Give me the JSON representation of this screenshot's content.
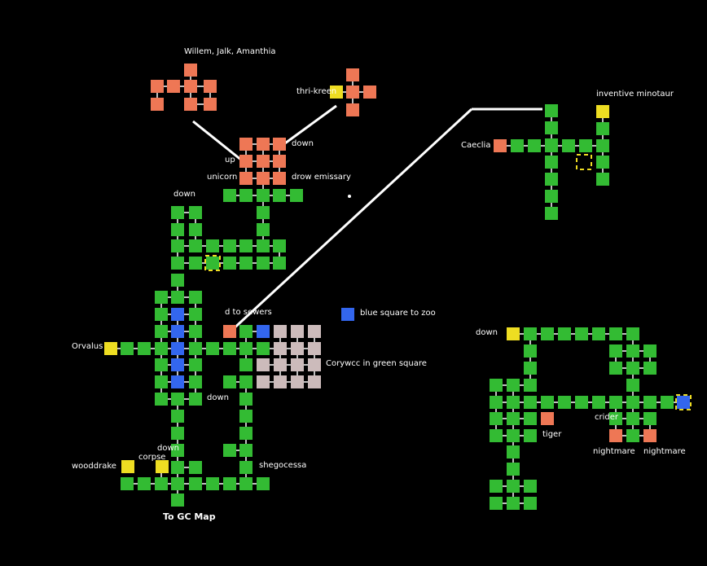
{
  "labels": {
    "party": "Willem, Jalk, Amanthia",
    "thri_kreen": "thri-kreen",
    "down_top": "down",
    "up": "up",
    "unicorn": "unicorn",
    "drow_emissary": "drow emissary",
    "down_left": "down",
    "inventive_minotaur": "inventive minotaur",
    "caeclia": "Caeclia",
    "to_sewers": "d to sewers",
    "blue_square_zoo": "blue square to zoo",
    "orvalus": "Orvalus",
    "corywcc": "Corywcc in green square",
    "down_mid": "down",
    "down_low": "down",
    "corpse": "corpse",
    "wooddrake": "wooddrake",
    "shegocessa": "shegocessa",
    "to_gc_map": "To GC Map",
    "down_right": "down",
    "tiger": "tiger",
    "crider": "crider",
    "nightmare1": "nightmare",
    "nightmare2": "nightmare"
  },
  "colors": {
    "room": "#33bb33",
    "npc": "#ee7755",
    "item": "#eedd22",
    "portal": "#3366ee",
    "special": "#ccbbbb",
    "background": "#000000",
    "path": "#ffffff"
  }
}
